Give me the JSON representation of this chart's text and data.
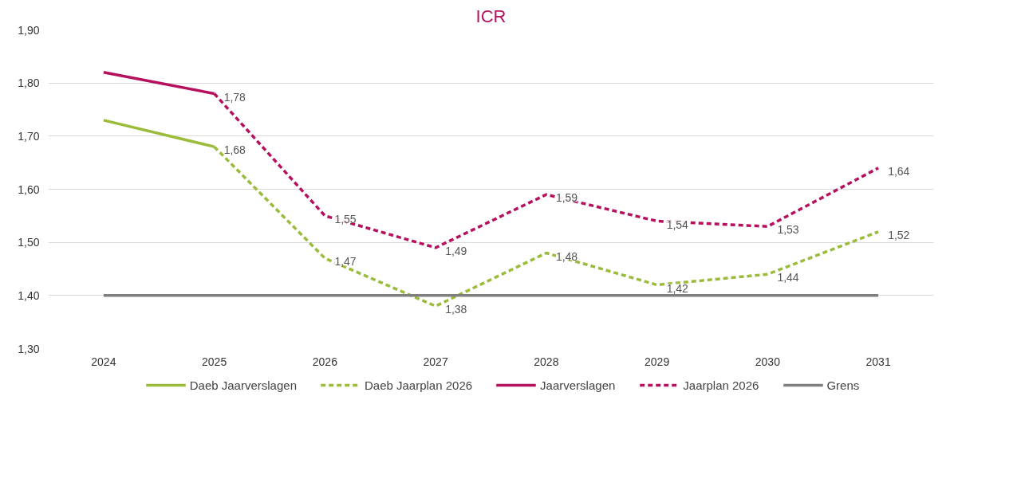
{
  "chart_data": {
    "type": "line",
    "title": "ICR",
    "categories": [
      "2024",
      "2025",
      "2026",
      "2027",
      "2028",
      "2029",
      "2030",
      "2031"
    ],
    "series": [
      {
        "name": "Daeb Jaarverslagen",
        "color": "#9bbb3b",
        "line_style": "solid",
        "values": [
          1.73,
          1.68,
          null,
          null,
          null,
          null,
          null,
          null
        ]
      },
      {
        "name": "Daeb Jaarplan 2026",
        "color": "#9bbb3b",
        "line_style": "dashed",
        "values": [
          null,
          1.68,
          1.47,
          1.38,
          1.48,
          1.42,
          1.44,
          1.52
        ],
        "value_labels": [
          null,
          "1,68",
          "1,47",
          "1,38",
          "1,48",
          "1,42",
          "1,44",
          "1,52"
        ]
      },
      {
        "name": "Jaarverslagen",
        "color": "#b5115e",
        "line_style": "solid",
        "values": [
          1.82,
          1.78,
          null,
          null,
          null,
          null,
          null,
          null
        ]
      },
      {
        "name": "Jaarplan 2026",
        "color": "#b5115e",
        "line_style": "dashed",
        "values": [
          null,
          1.78,
          1.55,
          1.49,
          1.59,
          1.54,
          1.53,
          1.64
        ],
        "value_labels": [
          null,
          "1,78",
          "1,55",
          "1,49",
          "1,59",
          "1,54",
          "1,53",
          "1,64"
        ]
      },
      {
        "name": "Grens",
        "color": "#7f7f7f",
        "line_style": "solid",
        "values": [
          1.4,
          1.4,
          1.4,
          1.4,
          1.4,
          1.4,
          1.4,
          1.4
        ]
      }
    ],
    "ylim": [
      1.3,
      1.9
    ],
    "yticks": [
      {
        "value": 1.3,
        "label": "1,30"
      },
      {
        "value": 1.4,
        "label": "1,40"
      },
      {
        "value": 1.5,
        "label": "1,50"
      },
      {
        "value": 1.6,
        "label": "1,60"
      },
      {
        "value": 1.7,
        "label": "1,70"
      },
      {
        "value": 1.8,
        "label": "1,80"
      },
      {
        "value": 1.9,
        "label": "1,90"
      }
    ],
    "grid": "y",
    "legend": "bottom",
    "marker": "none"
  }
}
